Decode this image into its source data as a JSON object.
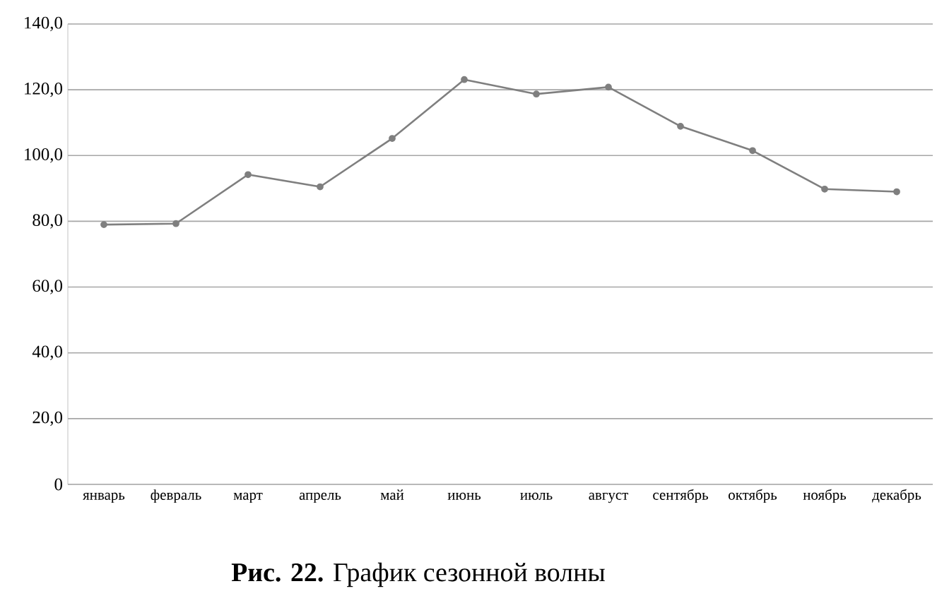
{
  "chart_data": {
    "type": "line",
    "title": "**Рис. 22.** График сезонной волны",
    "categories": [
      "январь",
      "февраль",
      "март",
      "апрель",
      "май",
      "июнь",
      "июль",
      "август",
      "сентябрь",
      "октябрь",
      "ноябрь",
      "декабрь"
    ],
    "values": [
      79.0,
      79.3,
      94.2,
      90.5,
      105.2,
      123.1,
      118.7,
      120.8,
      108.9,
      101.5,
      89.8,
      89.0
    ],
    "color": "#7f7f7f",
    "marker": "circle",
    "line_style": "solid",
    "grid": "y",
    "ylim": [
      0,
      140
    ],
    "yticks": [
      0,
      {
        "value": 20,
        "label": "20,0"
      },
      {
        "value": 40,
        "label": "40,0"
      },
      {
        "value": 60,
        "label": "60,0"
      },
      {
        "value": 80,
        "label": "80,0"
      },
      {
        "value": 100,
        "label": "100,0"
      },
      {
        "value": 120,
        "label": "120,0"
      },
      {
        "value": 140,
        "label": "140,0"
      }
    ]
  }
}
